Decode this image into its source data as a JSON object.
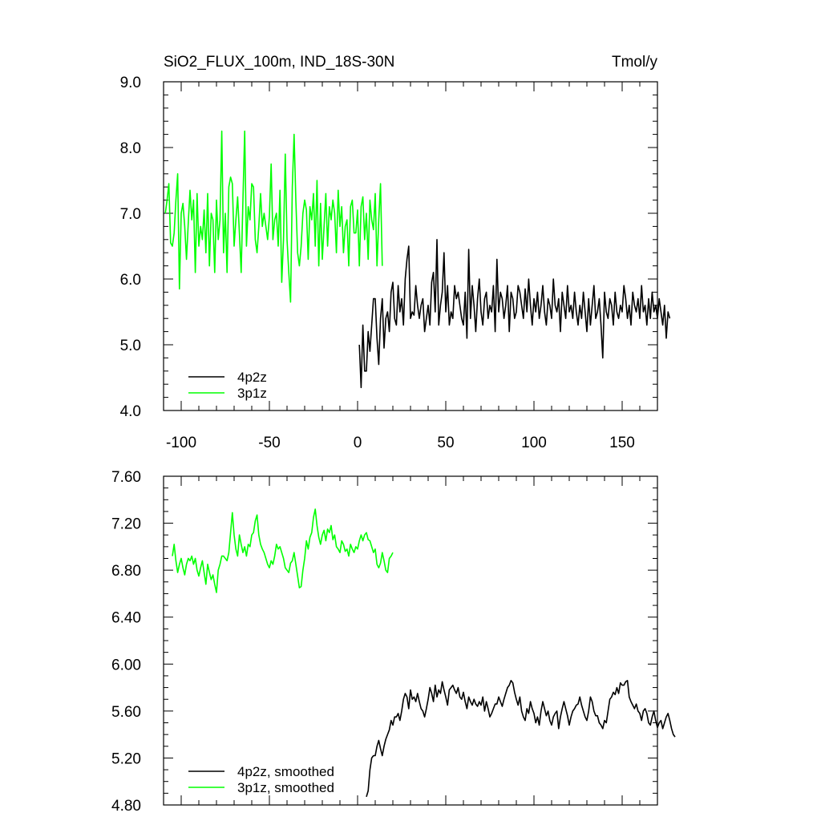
{
  "chart_data": [
    {
      "type": "line",
      "title": "SiO2_FLUX_100m, IND_18S-30N",
      "units": "Tmol/y",
      "xlim": [
        -110,
        170
      ],
      "ylim": [
        4.0,
        9.0
      ],
      "x_ticks": [
        -100,
        -50,
        0,
        50,
        100,
        150
      ],
      "x_tick_labels": [
        "-100",
        "-50",
        "0",
        "50",
        "100",
        "150"
      ],
      "y_ticks": [
        4.0,
        5.0,
        6.0,
        7.0,
        8.0,
        9.0
      ],
      "y_tick_labels": [
        "4.0",
        "5.0",
        "6.0",
        "7.0",
        "8.0",
        "9.0"
      ],
      "legend_position": "bottom-left",
      "series": [
        {
          "name": "4p2z",
          "color": "#000000",
          "x_start": 1,
          "x_step": 1,
          "values": [
            5.0,
            4.35,
            5.3,
            4.6,
            4.6,
            5.2,
            4.9,
            5.3,
            5.7,
            5.7,
            5.1,
            4.7,
            5.4,
            5.7,
            4.95,
            5.4,
            5.5,
            5.2,
            5.8,
            5.95,
            5.4,
            5.3,
            5.9,
            5.5,
            5.7,
            5.3,
            6.0,
            6.3,
            6.5,
            5.4,
            5.5,
            5.45,
            5.9,
            5.6,
            5.4,
            5.6,
            5.7,
            5.2,
            5.4,
            5.6,
            5.3,
            5.95,
            6.1,
            5.5,
            6.6,
            5.3,
            5.6,
            5.8,
            6.4,
            5.5,
            5.9,
            5.3,
            5.5,
            5.4,
            5.9,
            5.7,
            5.8,
            5.6,
            5.4,
            5.3,
            5.8,
            5.1,
            6.45,
            5.4,
            5.9,
            5.6,
            5.2,
            5.7,
            6.0,
            5.5,
            5.3,
            5.7,
            5.8,
            5.4,
            5.6,
            5.5,
            5.9,
            5.2,
            6.3,
            5.5,
            5.8,
            5.7,
            5.4,
            5.6,
            5.9,
            5.2,
            5.8,
            5.7,
            5.4,
            5.5,
            5.9,
            5.8,
            5.6,
            5.4,
            5.85,
            5.5,
            6.0,
            5.6,
            5.3,
            5.7,
            5.5,
            5.8,
            5.4,
            5.6,
            5.9,
            5.5,
            5.3,
            5.7,
            5.6,
            5.4,
            6.0,
            5.6,
            5.5,
            5.7,
            5.2,
            5.8,
            5.6,
            5.4,
            5.9,
            5.5,
            5.6,
            5.4,
            5.8,
            5.5,
            5.3,
            5.6,
            5.4,
            5.8,
            5.5,
            5.2,
            5.7,
            5.3,
            5.6,
            5.9,
            5.4,
            5.5,
            5.7,
            5.3,
            4.8,
            5.8,
            5.5,
            5.4,
            5.7,
            5.6,
            5.3,
            5.8,
            5.5,
            5.4,
            5.6,
            5.5,
            5.9,
            5.7,
            5.4,
            5.6,
            5.3,
            5.8,
            5.6,
            5.5,
            5.7,
            5.4,
            5.9,
            5.5,
            5.6,
            5.3,
            5.7,
            5.4,
            5.8,
            5.5,
            5.6,
            5.4,
            5.7,
            5.5,
            5.3,
            5.6,
            5.1,
            5.5,
            5.4
          ]
        },
        {
          "name": "3p1z",
          "color": "#00ff00",
          "x_start": -109,
          "x_step": 1,
          "values": [
            7.0,
            7.2,
            7.45,
            6.55,
            6.5,
            6.7,
            7.2,
            7.6,
            5.85,
            7.0,
            7.15,
            6.8,
            6.3,
            6.85,
            7.35,
            6.9,
            7.2,
            6.1,
            7.3,
            6.5,
            6.8,
            6.6,
            7.05,
            6.4,
            7.3,
            6.2,
            7.0,
            6.9,
            6.1,
            7.2,
            6.6,
            6.9,
            8.25,
            6.4,
            7.0,
            6.1,
            7.4,
            7.55,
            7.45,
            6.5,
            6.9,
            7.25,
            6.7,
            6.1,
            7.2,
            8.25,
            6.5,
            7.1,
            6.9,
            7.45,
            7.4,
            6.6,
            6.4,
            6.8,
            7.3,
            6.8,
            7.0,
            6.8,
            6.6,
            6.95,
            7.75,
            6.6,
            6.9,
            7.0,
            6.5,
            7.35,
            5.95,
            6.6,
            7.9,
            6.6,
            6.1,
            5.65,
            7.4,
            8.2,
            7.2,
            6.4,
            6.2,
            6.5,
            7.0,
            7.2,
            7.05,
            6.3,
            7.1,
            6.9,
            7.3,
            6.5,
            7.5,
            6.2,
            7.15,
            6.3,
            6.8,
            7.3,
            6.5,
            7.1,
            6.9,
            7.2,
            7.0,
            6.4,
            7.35,
            6.8,
            7.1,
            6.4,
            6.8,
            6.9,
            6.2,
            7.1,
            7.2,
            6.7,
            6.7,
            7.05,
            6.2,
            7.1,
            7.25,
            6.6,
            7.0,
            6.3,
            7.2,
            6.9,
            6.75,
            7.3,
            6.2,
            6.9,
            7.45,
            6.2
          ]
        }
      ]
    },
    {
      "type": "line",
      "xlim": [
        -110,
        170
      ],
      "ylim": [
        4.8,
        7.6
      ],
      "y_ticks": [
        4.8,
        5.2,
        5.6,
        6.0,
        6.4,
        6.8,
        7.2,
        7.6
      ],
      "y_tick_labels": [
        "4.80",
        "5.20",
        "5.60",
        "6.00",
        "6.40",
        "6.80",
        "7.20",
        "7.60"
      ],
      "x_ticks": [
        -100,
        -50,
        0,
        50,
        100,
        150
      ],
      "legend_position": "bottom-left",
      "series": [
        {
          "name": "4p2z, smoothed",
          "color": "#000000",
          "x_start": 5,
          "x_step": 1,
          "values": [
            4.87,
            4.92,
            5.1,
            5.2,
            5.22,
            5.22,
            5.3,
            5.35,
            5.28,
            5.22,
            5.3,
            5.36,
            5.4,
            5.44,
            5.52,
            5.48,
            5.55,
            5.55,
            5.58,
            5.52,
            5.6,
            5.7,
            5.75,
            5.72,
            5.62,
            5.78,
            5.7,
            5.72,
            5.68,
            5.75,
            5.68,
            5.62,
            5.6,
            5.55,
            5.62,
            5.7,
            5.8,
            5.75,
            5.68,
            5.82,
            5.72,
            5.78,
            5.75,
            5.85,
            5.78,
            5.72,
            5.65,
            5.78,
            5.8,
            5.82,
            5.78,
            5.75,
            5.8,
            5.72,
            5.7,
            5.76,
            5.68,
            5.62,
            5.72,
            5.68,
            5.65,
            5.7,
            5.66,
            5.64,
            5.68,
            5.65,
            5.72,
            5.6,
            5.68,
            5.62,
            5.55,
            5.58,
            5.62,
            5.66,
            5.66,
            5.72,
            5.68,
            5.64,
            5.7,
            5.75,
            5.8,
            5.82,
            5.86,
            5.84,
            5.76,
            5.7,
            5.65,
            5.72,
            5.6,
            5.55,
            5.52,
            5.62,
            5.58,
            5.68,
            5.62,
            5.58,
            5.5,
            5.55,
            5.48,
            5.6,
            5.68,
            5.62,
            5.56,
            5.6,
            5.52,
            5.48,
            5.55,
            5.58,
            5.6,
            5.45,
            5.55,
            5.62,
            5.68,
            5.62,
            5.56,
            5.48,
            5.55,
            5.6,
            5.62,
            5.65,
            5.66,
            5.72,
            5.65,
            5.6,
            5.55,
            5.52,
            5.6,
            5.72,
            5.68,
            5.6,
            5.56,
            5.56,
            5.5,
            5.48,
            5.45,
            5.52,
            5.5,
            5.6,
            5.7,
            5.72,
            5.76,
            5.74,
            5.8,
            5.75,
            5.84,
            5.82,
            5.82,
            5.85,
            5.86,
            5.72,
            5.68,
            5.65,
            5.62,
            5.66,
            5.6,
            5.58,
            5.52,
            5.6,
            5.62,
            5.58,
            5.5,
            5.48,
            5.55,
            5.6,
            5.52,
            5.46,
            5.5,
            5.52,
            5.45,
            5.5,
            5.55,
            5.58,
            5.52,
            5.45,
            5.4,
            5.38
          ]
        },
        {
          "name": "3p1z, smoothed",
          "color": "#00ff00",
          "x_start": -105,
          "x_step": 1,
          "values": [
            6.92,
            7.02,
            6.88,
            6.78,
            6.85,
            6.9,
            6.82,
            6.76,
            6.85,
            6.9,
            6.88,
            6.92,
            6.85,
            6.9,
            6.8,
            6.75,
            6.82,
            6.88,
            6.78,
            6.68,
            6.85,
            6.78,
            6.72,
            6.76,
            6.68,
            6.61,
            6.8,
            6.85,
            6.92,
            6.92,
            6.9,
            6.88,
            6.95,
            7.12,
            7.29,
            7.1,
            6.98,
            6.92,
            7.1,
            7.02,
            6.95,
            7.0,
            6.92,
            7.02,
            7.0,
            7.1,
            7.12,
            7.22,
            7.27,
            7.1,
            7.02,
            6.98,
            6.95,
            6.9,
            6.85,
            6.82,
            6.88,
            6.85,
            6.92,
            7.02,
            6.98,
            7.0,
            6.95,
            6.9,
            6.82,
            6.8,
            6.78,
            6.86,
            6.88,
            6.95,
            6.85,
            6.75,
            6.65,
            6.66,
            6.8,
            6.9,
            7.05,
            6.98,
            7.08,
            7.12,
            7.25,
            7.32,
            7.18,
            7.08,
            7.02,
            7.1,
            7.14,
            7.05,
            7.15,
            7.12,
            7.18,
            7.06,
            7.1,
            7.0,
            6.98,
            6.95,
            7.05,
            7.02,
            6.96,
            6.98,
            6.92,
            7.02,
            6.98,
            6.95,
            7.0,
            6.98,
            7.05,
            7.1,
            7.05,
            7.1,
            7.12,
            7.06,
            7.05,
            7.0,
            6.95,
            6.98,
            6.85,
            6.82,
            6.86,
            6.95,
            6.88,
            6.8,
            6.78,
            6.9,
            6.92,
            6.95
          ]
        }
      ]
    }
  ]
}
